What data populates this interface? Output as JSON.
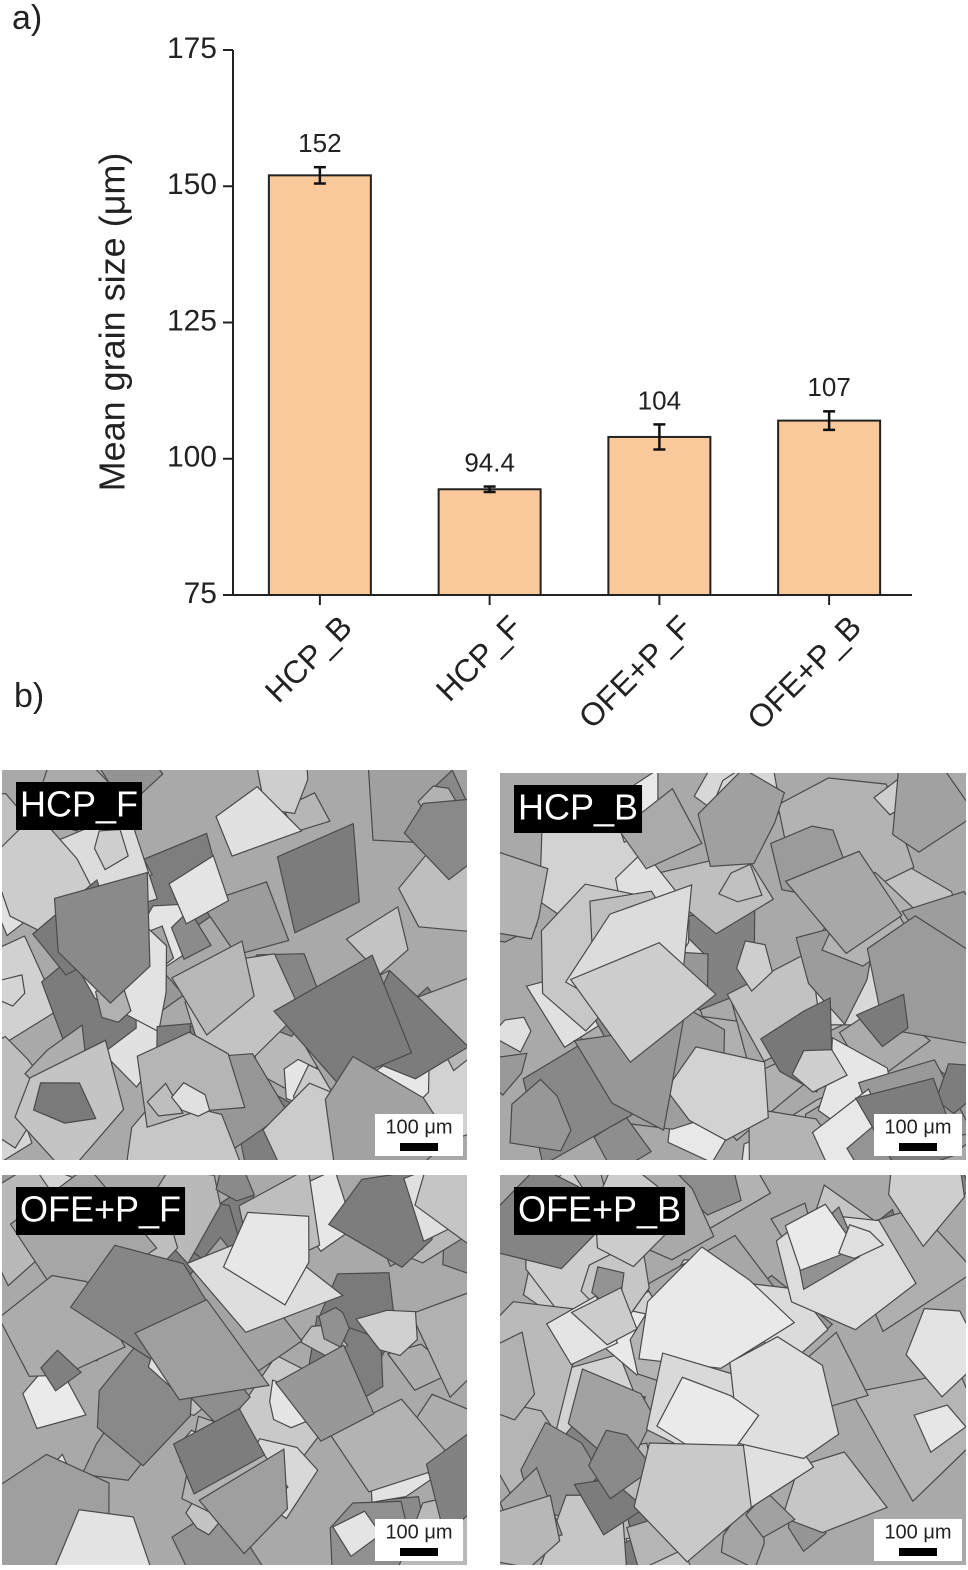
{
  "panel_a": "a)",
  "panel_b": "b)",
  "chart_data": {
    "type": "bar",
    "ylabel": "Mean grain size (μm)",
    "categories": [
      "HCP_B",
      "HCP_F",
      "OFE+P_F",
      "OFE+P_B"
    ],
    "values": [
      152,
      94.4,
      104,
      107
    ],
    "errors": [
      1.5,
      0.5,
      2.3,
      1.7
    ],
    "color": "#f9c89b",
    "ylim": [
      75,
      175
    ],
    "yticks": [
      75,
      100,
      125,
      150,
      175
    ]
  },
  "micrographs": [
    {
      "label": "HCP_F",
      "scale_bar": "100 μm"
    },
    {
      "label": "HCP_B",
      "scale_bar": "100 μm"
    },
    {
      "label": "OFE+P_F",
      "scale_bar": "100 μm"
    },
    {
      "label": "OFE+P_B",
      "scale_bar": "100 μm"
    }
  ]
}
